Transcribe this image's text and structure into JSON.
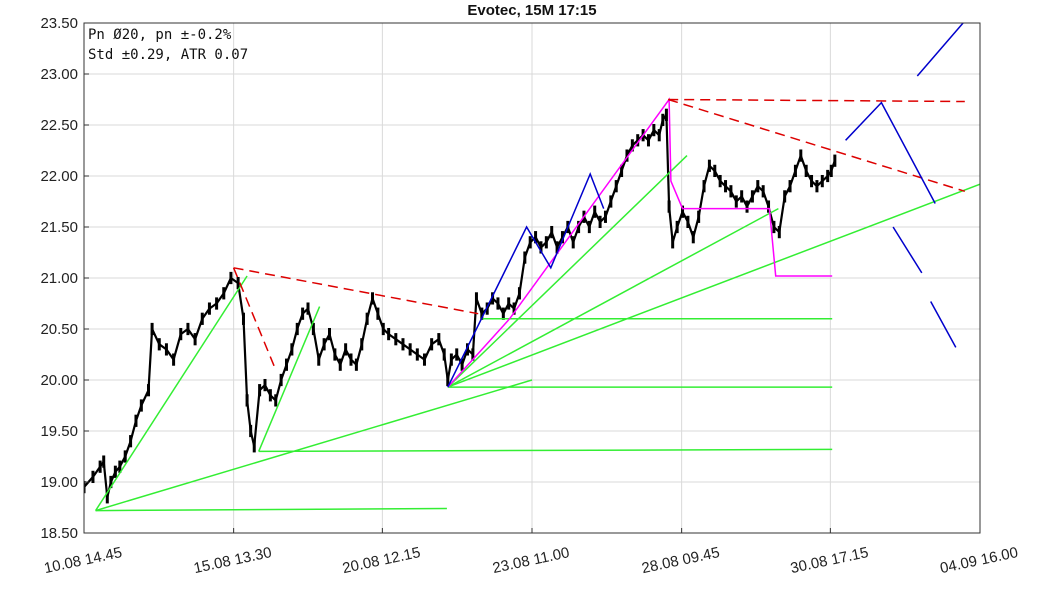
{
  "chart_data": {
    "type": "line",
    "title": "Evotec, 15M 17:15",
    "info_lines": [
      "Pn  Ø20, pn ±-0.2%",
      "Std ±0.29, ATR 0.07"
    ],
    "xlabel": "",
    "ylabel": "",
    "grid": true,
    "x_range": [
      0,
      100
    ],
    "ylim": [
      18.5,
      23.5
    ],
    "y_ticks": [
      "18.50",
      "19.00",
      "19.50",
      "20.00",
      "20.50",
      "21.00",
      "21.50",
      "22.00",
      "22.50",
      "23.00",
      "23.50"
    ],
    "y_tick_values": [
      18.5,
      19.0,
      19.5,
      20.0,
      20.5,
      21.0,
      21.5,
      22.0,
      22.5,
      23.0,
      23.5
    ],
    "x_ticks": [
      {
        "x": 0,
        "label": "10.08 14.45"
      },
      {
        "x": 16.7,
        "label": "15.08 13.30"
      },
      {
        "x": 33.3,
        "label": "20.08 12.15"
      },
      {
        "x": 50,
        "label": "23.08 11.00"
      },
      {
        "x": 66.7,
        "label": "28.08 09.45"
      },
      {
        "x": 83.3,
        "label": "30.08 17.15"
      },
      {
        "x": 100,
        "label": "04.09 16.00"
      }
    ],
    "price_series": {
      "name": "Evotec",
      "color": "#000000",
      "points": [
        [
          0.0,
          18.95
        ],
        [
          1.0,
          19.05
        ],
        [
          1.8,
          19.15
        ],
        [
          2.2,
          19.2
        ],
        [
          2.6,
          18.85
        ],
        [
          3.0,
          19.0
        ],
        [
          3.5,
          19.1
        ],
        [
          4.0,
          19.15
        ],
        [
          4.6,
          19.25
        ],
        [
          5.2,
          19.4
        ],
        [
          5.8,
          19.6
        ],
        [
          6.4,
          19.75
        ],
        [
          7.2,
          19.9
        ],
        [
          7.6,
          20.5
        ],
        [
          8.4,
          20.35
        ],
        [
          9.2,
          20.3
        ],
        [
          10.0,
          20.2
        ],
        [
          10.8,
          20.45
        ],
        [
          11.6,
          20.5
        ],
        [
          12.4,
          20.4
        ],
        [
          13.2,
          20.6
        ],
        [
          14.0,
          20.7
        ],
        [
          14.8,
          20.75
        ],
        [
          15.6,
          20.85
        ],
        [
          16.4,
          21.0
        ],
        [
          17.2,
          20.95
        ],
        [
          17.8,
          20.6
        ],
        [
          18.2,
          19.8
        ],
        [
          18.6,
          19.5
        ],
        [
          19.0,
          19.35
        ],
        [
          19.6,
          19.9
        ],
        [
          20.2,
          19.95
        ],
        [
          20.8,
          19.85
        ],
        [
          21.4,
          19.8
        ],
        [
          22.0,
          20.0
        ],
        [
          22.6,
          20.15
        ],
        [
          23.2,
          20.3
        ],
        [
          23.8,
          20.5
        ],
        [
          24.4,
          20.65
        ],
        [
          25.0,
          20.7
        ],
        [
          25.6,
          20.5
        ],
        [
          26.2,
          20.2
        ],
        [
          26.8,
          20.35
        ],
        [
          27.4,
          20.45
        ],
        [
          28.0,
          20.25
        ],
        [
          28.6,
          20.15
        ],
        [
          29.2,
          20.3
        ],
        [
          29.8,
          20.2
        ],
        [
          30.4,
          20.15
        ],
        [
          31.0,
          20.35
        ],
        [
          31.6,
          20.6
        ],
        [
          32.2,
          20.8
        ],
        [
          32.8,
          20.65
        ],
        [
          33.4,
          20.5
        ],
        [
          34.0,
          20.45
        ],
        [
          34.8,
          20.4
        ],
        [
          35.6,
          20.35
        ],
        [
          36.4,
          20.3
        ],
        [
          37.2,
          20.25
        ],
        [
          38.0,
          20.2
        ],
        [
          38.8,
          20.35
        ],
        [
          39.6,
          20.4
        ],
        [
          40.2,
          20.25
        ],
        [
          40.6,
          20.0
        ],
        [
          41.0,
          20.2
        ],
        [
          41.6,
          20.25
        ],
        [
          42.2,
          20.15
        ],
        [
          42.8,
          20.3
        ],
        [
          43.4,
          20.25
        ],
        [
          43.8,
          20.8
        ],
        [
          44.4,
          20.65
        ],
        [
          45.0,
          20.7
        ],
        [
          45.6,
          20.8
        ],
        [
          46.2,
          20.75
        ],
        [
          46.8,
          20.65
        ],
        [
          47.4,
          20.75
        ],
        [
          48.0,
          20.7
        ],
        [
          48.6,
          20.85
        ],
        [
          49.2,
          21.2
        ],
        [
          49.8,
          21.35
        ],
        [
          50.4,
          21.4
        ],
        [
          51.0,
          21.3
        ],
        [
          51.6,
          21.35
        ],
        [
          52.2,
          21.45
        ],
        [
          52.8,
          21.3
        ],
        [
          53.4,
          21.4
        ],
        [
          54.0,
          21.5
        ],
        [
          54.6,
          21.35
        ],
        [
          55.2,
          21.5
        ],
        [
          55.8,
          21.6
        ],
        [
          56.4,
          21.5
        ],
        [
          57.0,
          21.65
        ],
        [
          57.6,
          21.55
        ],
        [
          58.2,
          21.6
        ],
        [
          58.8,
          21.75
        ],
        [
          59.4,
          21.9
        ],
        [
          60.0,
          22.05
        ],
        [
          60.6,
          22.2
        ],
        [
          61.2,
          22.3
        ],
        [
          61.8,
          22.35
        ],
        [
          62.4,
          22.4
        ],
        [
          63.0,
          22.35
        ],
        [
          63.6,
          22.45
        ],
        [
          64.2,
          22.4
        ],
        [
          64.6,
          22.55
        ],
        [
          65.0,
          22.6
        ],
        [
          65.3,
          21.7
        ],
        [
          65.7,
          21.35
        ],
        [
          66.2,
          21.5
        ],
        [
          66.8,
          21.65
        ],
        [
          67.4,
          21.55
        ],
        [
          68.0,
          21.4
        ],
        [
          68.6,
          21.6
        ],
        [
          69.2,
          21.9
        ],
        [
          69.8,
          22.1
        ],
        [
          70.4,
          22.05
        ],
        [
          71.0,
          21.95
        ],
        [
          71.6,
          21.9
        ],
        [
          72.2,
          21.85
        ],
        [
          72.8,
          21.75
        ],
        [
          73.4,
          21.8
        ],
        [
          74.0,
          21.7
        ],
        [
          74.6,
          21.8
        ],
        [
          75.2,
          21.9
        ],
        [
          75.8,
          21.85
        ],
        [
          76.4,
          21.7
        ],
        [
          77.0,
          21.5
        ],
        [
          77.6,
          21.45
        ],
        [
          78.2,
          21.8
        ],
        [
          78.8,
          21.9
        ],
        [
          79.4,
          22.05
        ],
        [
          80.0,
          22.2
        ],
        [
          80.6,
          22.05
        ],
        [
          81.2,
          21.95
        ],
        [
          81.8,
          21.9
        ],
        [
          82.4,
          21.95
        ],
        [
          83.0,
          22.0
        ],
        [
          83.4,
          22.05
        ],
        [
          83.8,
          22.15
        ]
      ]
    },
    "annotation_lines": [
      {
        "kind": "trend-fan",
        "color": "#33ee33",
        "dash": false,
        "points": [
          [
            1.3,
            18.72
          ],
          [
            18.2,
            21.02
          ]
        ]
      },
      {
        "kind": "trend-fan",
        "color": "#33ee33",
        "dash": false,
        "points": [
          [
            1.3,
            18.72
          ],
          [
            50.0,
            20.0
          ]
        ]
      },
      {
        "kind": "horizontal-level",
        "color": "#33ee33",
        "dash": false,
        "points": [
          [
            1.3,
            18.72
          ],
          [
            40.5,
            18.74
          ]
        ]
      },
      {
        "kind": "trend-fan",
        "color": "#33ee33",
        "dash": false,
        "points": [
          [
            19.5,
            19.3
          ],
          [
            26.3,
            20.72
          ]
        ]
      },
      {
        "kind": "horizontal-level",
        "color": "#33ee33",
        "dash": false,
        "points": [
          [
            19.5,
            19.3
          ],
          [
            83.5,
            19.32
          ]
        ]
      },
      {
        "kind": "trend-fan",
        "color": "#33ee33",
        "dash": false,
        "points": [
          [
            40.6,
            19.93
          ],
          [
            67.3,
            22.2
          ]
        ]
      },
      {
        "kind": "trend-fan",
        "color": "#33ee33",
        "dash": false,
        "points": [
          [
            40.6,
            19.93
          ],
          [
            77.5,
            21.68
          ]
        ]
      },
      {
        "kind": "trend-fan",
        "color": "#33ee33",
        "dash": false,
        "points": [
          [
            40.6,
            19.93
          ],
          [
            100.0,
            21.92
          ]
        ]
      },
      {
        "kind": "horizontal-level",
        "color": "#33ee33",
        "dash": false,
        "points": [
          [
            40.6,
            19.93
          ],
          [
            83.5,
            19.93
          ]
        ]
      },
      {
        "kind": "horizontal-level",
        "color": "#33ee33",
        "dash": false,
        "points": [
          [
            44.5,
            20.6
          ],
          [
            83.5,
            20.6
          ]
        ]
      },
      {
        "kind": "zigzag",
        "color": "#ff00ff",
        "dash": false,
        "points": [
          [
            40.6,
            19.93
          ],
          [
            47.5,
            20.6
          ],
          [
            65.3,
            22.75
          ],
          [
            65.5,
            21.95
          ],
          [
            66.8,
            21.68
          ],
          [
            76.5,
            21.68
          ],
          [
            77.2,
            21.02
          ],
          [
            83.5,
            21.02
          ]
        ]
      },
      {
        "kind": "zigzag",
        "color": "#0000cc",
        "dash": false,
        "points": [
          [
            40.6,
            19.93
          ],
          [
            49.4,
            21.5
          ],
          [
            52.1,
            21.1
          ],
          [
            56.5,
            22.02
          ],
          [
            58.0,
            21.68
          ]
        ]
      },
      {
        "kind": "resistance",
        "color": "#dd0000",
        "dash": true,
        "points": [
          [
            16.7,
            21.1
          ],
          [
            44.0,
            20.65
          ]
        ]
      },
      {
        "kind": "resistance",
        "color": "#dd0000",
        "dash": true,
        "points": [
          [
            16.7,
            21.1
          ],
          [
            21.4,
            20.1
          ]
        ]
      },
      {
        "kind": "resistance",
        "color": "#dd0000",
        "dash": true,
        "points": [
          [
            65.2,
            22.75
          ],
          [
            98.3,
            22.73
          ]
        ]
      },
      {
        "kind": "resistance",
        "color": "#dd0000",
        "dash": true,
        "points": [
          [
            65.2,
            22.75
          ],
          [
            98.3,
            21.85
          ]
        ]
      },
      {
        "kind": "projection",
        "color": "#0000cc",
        "dash": false,
        "points": [
          [
            85.0,
            22.35
          ],
          [
            89.0,
            22.72
          ],
          [
            95.0,
            21.73
          ]
        ]
      },
      {
        "kind": "projection",
        "color": "#0000cc",
        "dash": false,
        "points": [
          [
            93.0,
            22.98
          ],
          [
            98.3,
            23.52
          ]
        ]
      },
      {
        "kind": "projection",
        "color": "#0000cc",
        "dash": false,
        "points": [
          [
            90.3,
            21.5
          ],
          [
            93.5,
            21.05
          ]
        ]
      },
      {
        "kind": "projection",
        "color": "#0000cc",
        "dash": false,
        "points": [
          [
            94.5,
            20.77
          ],
          [
            97.3,
            20.32
          ]
        ]
      }
    ]
  }
}
